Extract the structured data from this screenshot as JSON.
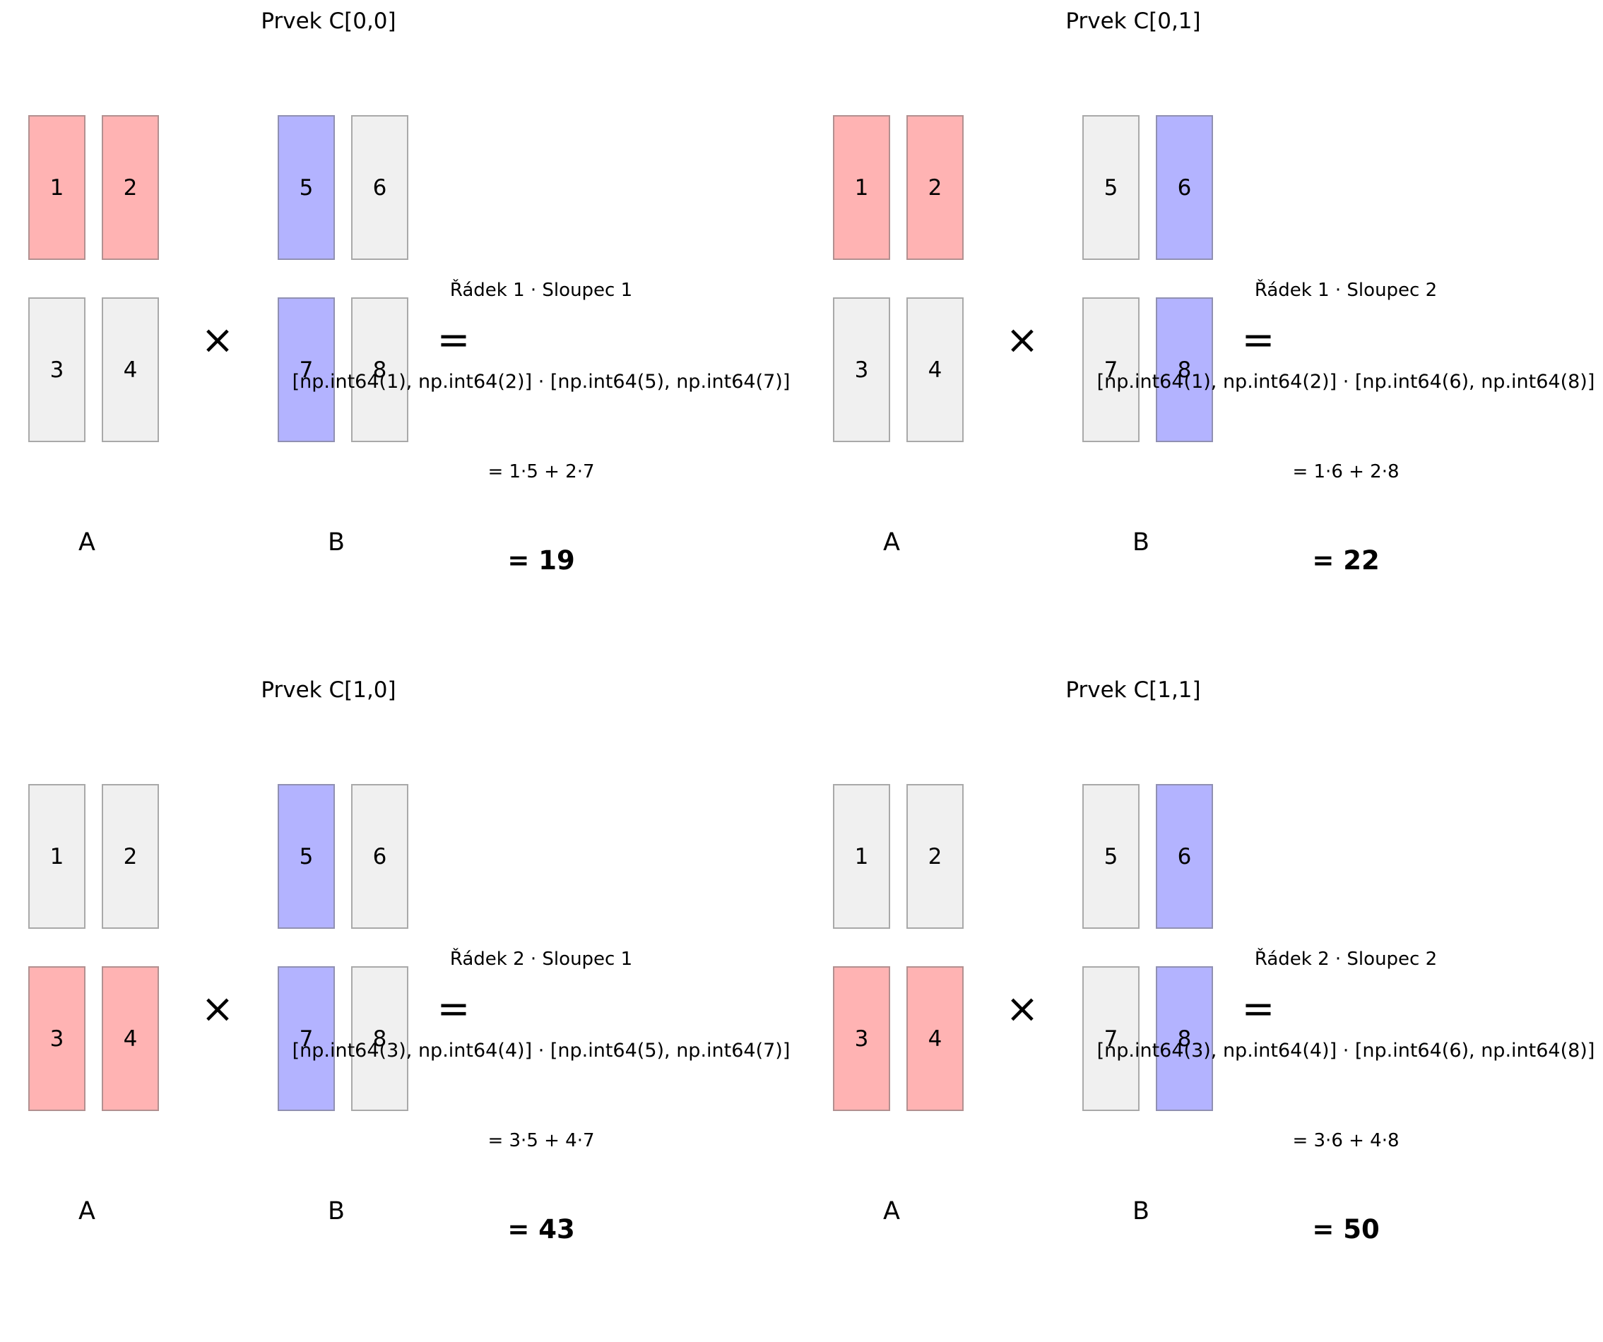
{
  "colors": {
    "row_highlight": "#ffb3b3",
    "column_highlight": "#b3b3ff",
    "neutral_cell": "#f0f0f0",
    "cell_border": "#a9a9a9"
  },
  "operators": {
    "times": "×",
    "equals": "="
  },
  "matrix_labels": {
    "a": "A",
    "b": "B"
  },
  "panels": [
    {
      "title": "Prvek C[0,0]",
      "a": [
        "1",
        "2",
        "3",
        "4"
      ],
      "b": [
        "5",
        "6",
        "7",
        "8"
      ],
      "highlight_row": 0,
      "highlight_col": 0,
      "description": "Řádek 1 · Sloupec 1",
      "dot_expression": "[np.int64(1), np.int64(2)] · [np.int64(5), np.int64(7)]",
      "sum_expression": "= 1·5 + 2·7",
      "result": "= 19"
    },
    {
      "title": "Prvek C[0,1]",
      "a": [
        "1",
        "2",
        "3",
        "4"
      ],
      "b": [
        "5",
        "6",
        "7",
        "8"
      ],
      "highlight_row": 0,
      "highlight_col": 1,
      "description": "Řádek 1 · Sloupec 2",
      "dot_expression": "[np.int64(1), np.int64(2)] · [np.int64(6), np.int64(8)]",
      "sum_expression": "= 1·6 + 2·8",
      "result": "= 22"
    },
    {
      "title": "Prvek C[1,0]",
      "a": [
        "1",
        "2",
        "3",
        "4"
      ],
      "b": [
        "5",
        "6",
        "7",
        "8"
      ],
      "highlight_row": 1,
      "highlight_col": 0,
      "description": "Řádek 2 · Sloupec 1",
      "dot_expression": "[np.int64(3), np.int64(4)] · [np.int64(5), np.int64(7)]",
      "sum_expression": "= 3·5 + 4·7",
      "result": "= 43"
    },
    {
      "title": "Prvek C[1,1]",
      "a": [
        "1",
        "2",
        "3",
        "4"
      ],
      "b": [
        "5",
        "6",
        "7",
        "8"
      ],
      "highlight_row": 1,
      "highlight_col": 1,
      "description": "Řádek 2 · Sloupec 2",
      "dot_expression": "[np.int64(3), np.int64(4)] · [np.int64(6), np.int64(8)]",
      "sum_expression": "= 3·6 + 4·8",
      "result": "= 50"
    }
  ]
}
